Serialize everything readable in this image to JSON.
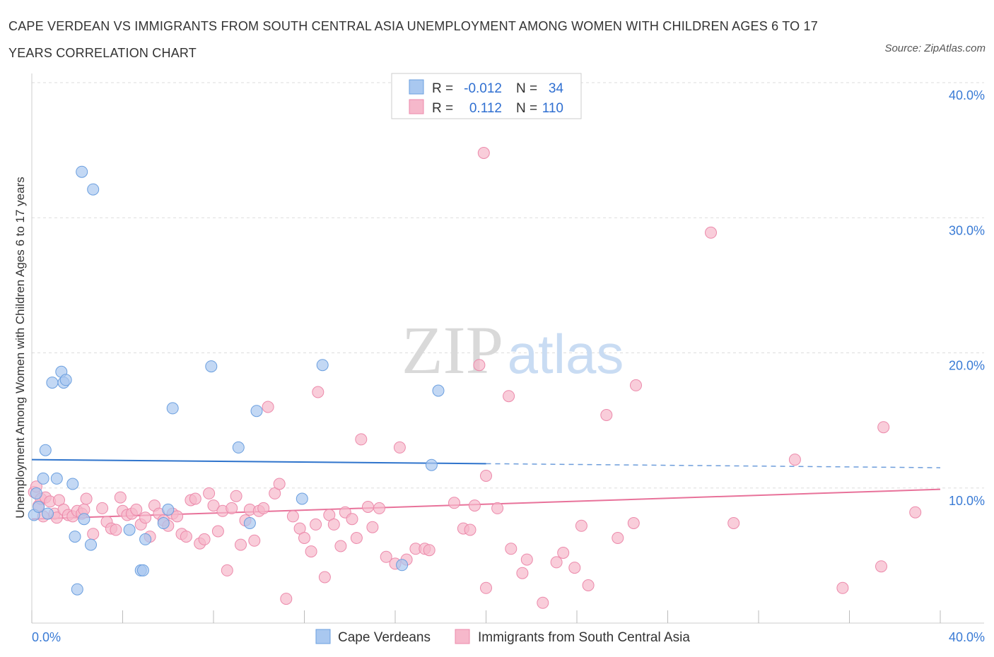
{
  "header": {
    "title": "CAPE VERDEAN VS IMMIGRANTS FROM SOUTH CENTRAL ASIA UNEMPLOYMENT AMONG WOMEN WITH CHILDREN AGES 6 TO 17 YEARS CORRELATION CHART",
    "source": "Source: ZipAtlas.com"
  },
  "watermark": {
    "zip": "ZIP",
    "atlas": "atlas"
  },
  "legend_box": {
    "rows": [
      {
        "r_label": "R =",
        "r_value": "-0.012",
        "n_label": "N =",
        "n_value": "34",
        "color": "#a9c8f0"
      },
      {
        "r_label": "R =",
        "r_value": "0.112",
        "n_label": "N =",
        "n_value": "110",
        "color": "#f6b8cb"
      }
    ]
  },
  "bottom_legend": {
    "items": [
      {
        "label": "Cape Verdeans",
        "color": "#a9c8f0"
      },
      {
        "label": "Immigrants from South Central Asia",
        "color": "#f6b8cb"
      }
    ]
  },
  "colors": {
    "blue_fill": "#a9c8f0",
    "blue_stroke": "#6b9fdf",
    "blue_line": "#2f74cc",
    "pink_fill": "#f6b8cb",
    "pink_stroke": "#ec8aab",
    "pink_line": "#e8729a",
    "grid": "#dddddd",
    "tick_text": "#3a7bd5"
  },
  "chart_data": {
    "type": "scatter",
    "ylabel": "Unemployment Among Women with Children Ages 6 to 17 years",
    "xlabel": "",
    "xlim": [
      0,
      40
    ],
    "ylim": [
      0,
      40
    ],
    "x_tick_labels": [
      "0.0%",
      "40.0%"
    ],
    "y_tick_values": [
      10,
      20,
      30,
      40
    ],
    "y_tick_labels": [
      "10.0%",
      "20.0%",
      "30.0%",
      "40.0%"
    ],
    "grid": true,
    "legend_placement": "top-center",
    "series": [
      {
        "name": "Cape Verdeans",
        "R": -0.012,
        "N": 34,
        "trend": {
          "x0": 0,
          "y0": 12.1,
          "x1": 20,
          "y1": 11.8,
          "x_end": 40,
          "y_end": 11.5
        },
        "points": [
          [
            0.1,
            8.0
          ],
          [
            0.2,
            9.6
          ],
          [
            0.3,
            8.6
          ],
          [
            0.5,
            10.7
          ],
          [
            0.6,
            12.8
          ],
          [
            0.7,
            8.1
          ],
          [
            0.9,
            17.8
          ],
          [
            1.1,
            10.7
          ],
          [
            1.3,
            18.6
          ],
          [
            1.4,
            17.8
          ],
          [
            1.5,
            18.0
          ],
          [
            1.8,
            10.3
          ],
          [
            1.9,
            6.4
          ],
          [
            2.0,
            2.5
          ],
          [
            2.2,
            33.4
          ],
          [
            2.3,
            7.7
          ],
          [
            2.6,
            5.8
          ],
          [
            2.7,
            32.1
          ],
          [
            4.3,
            6.9
          ],
          [
            4.8,
            3.9
          ],
          [
            4.9,
            3.9
          ],
          [
            5.0,
            6.2
          ],
          [
            5.8,
            7.4
          ],
          [
            6.0,
            8.4
          ],
          [
            6.2,
            15.9
          ],
          [
            7.9,
            19.0
          ],
          [
            9.1,
            13.0
          ],
          [
            9.6,
            7.4
          ],
          [
            9.9,
            15.7
          ],
          [
            11.9,
            9.2
          ],
          [
            12.8,
            19.1
          ],
          [
            16.3,
            4.3
          ],
          [
            17.6,
            11.7
          ],
          [
            17.9,
            17.2
          ]
        ]
      },
      {
        "name": "Immigrants from South Central Asia",
        "R": 0.112,
        "N": 110,
        "trend": {
          "x0": 0,
          "y0": 7.7,
          "x1": 40,
          "y1": 9.9
        },
        "points": [
          [
            0.1,
            9.7
          ],
          [
            0.2,
            10.1
          ],
          [
            0.3,
            8.7
          ],
          [
            0.4,
            9.2
          ],
          [
            0.5,
            7.9
          ],
          [
            0.6,
            9.3
          ],
          [
            0.8,
            9.0
          ],
          [
            1.0,
            8.1
          ],
          [
            1.1,
            7.8
          ],
          [
            1.2,
            9.1
          ],
          [
            1.4,
            8.4
          ],
          [
            1.6,
            8.0
          ],
          [
            1.8,
            7.9
          ],
          [
            2.0,
            8.3
          ],
          [
            2.2,
            8.1
          ],
          [
            2.3,
            8.4
          ],
          [
            2.4,
            9.2
          ],
          [
            2.7,
            6.6
          ],
          [
            3.1,
            8.5
          ],
          [
            3.3,
            7.5
          ],
          [
            3.5,
            7.0
          ],
          [
            3.7,
            6.9
          ],
          [
            3.9,
            9.3
          ],
          [
            4.0,
            8.3
          ],
          [
            4.2,
            8.0
          ],
          [
            4.4,
            8.1
          ],
          [
            4.6,
            8.4
          ],
          [
            4.8,
            7.3
          ],
          [
            5.0,
            7.8
          ],
          [
            5.2,
            6.4
          ],
          [
            5.4,
            8.7
          ],
          [
            5.6,
            8.1
          ],
          [
            5.8,
            7.6
          ],
          [
            6.0,
            7.2
          ],
          [
            6.2,
            8.1
          ],
          [
            6.4,
            7.9
          ],
          [
            6.6,
            6.6
          ],
          [
            6.8,
            6.4
          ],
          [
            7.0,
            9.1
          ],
          [
            7.2,
            9.2
          ],
          [
            7.4,
            5.9
          ],
          [
            7.6,
            6.2
          ],
          [
            7.8,
            9.6
          ],
          [
            8.0,
            8.7
          ],
          [
            8.2,
            6.8
          ],
          [
            8.4,
            8.3
          ],
          [
            8.6,
            3.9
          ],
          [
            8.8,
            8.5
          ],
          [
            9.0,
            9.4
          ],
          [
            9.2,
            5.8
          ],
          [
            9.4,
            7.6
          ],
          [
            9.6,
            8.4
          ],
          [
            9.8,
            6.1
          ],
          [
            10.0,
            8.3
          ],
          [
            10.2,
            8.5
          ],
          [
            10.4,
            16.0
          ],
          [
            10.7,
            9.6
          ],
          [
            10.9,
            10.3
          ],
          [
            11.2,
            1.8
          ],
          [
            11.5,
            7.9
          ],
          [
            11.8,
            7.0
          ],
          [
            12.0,
            6.3
          ],
          [
            12.3,
            5.3
          ],
          [
            12.5,
            7.3
          ],
          [
            12.6,
            17.1
          ],
          [
            12.9,
            3.4
          ],
          [
            13.1,
            8.0
          ],
          [
            13.3,
            7.3
          ],
          [
            13.6,
            5.7
          ],
          [
            13.8,
            8.2
          ],
          [
            14.1,
            7.7
          ],
          [
            14.3,
            6.3
          ],
          [
            14.5,
            13.6
          ],
          [
            14.8,
            8.6
          ],
          [
            15.0,
            7.1
          ],
          [
            15.3,
            8.5
          ],
          [
            15.6,
            4.9
          ],
          [
            16.0,
            4.4
          ],
          [
            16.2,
            13.0
          ],
          [
            16.5,
            4.7
          ],
          [
            16.9,
            5.5
          ],
          [
            17.3,
            5.5
          ],
          [
            17.5,
            5.4
          ],
          [
            18.6,
            8.9
          ],
          [
            19.0,
            7.0
          ],
          [
            19.3,
            6.9
          ],
          [
            19.5,
            8.7
          ],
          [
            19.7,
            19.1
          ],
          [
            19.9,
            34.8
          ],
          [
            20.0,
            2.6
          ],
          [
            20.0,
            10.9
          ],
          [
            20.5,
            8.5
          ],
          [
            21.0,
            16.8
          ],
          [
            21.1,
            5.5
          ],
          [
            21.6,
            3.7
          ],
          [
            21.8,
            4.7
          ],
          [
            22.5,
            1.5
          ],
          [
            23.1,
            4.5
          ],
          [
            23.4,
            5.2
          ],
          [
            23.9,
            4.1
          ],
          [
            24.2,
            7.2
          ],
          [
            24.5,
            2.8
          ],
          [
            25.3,
            15.4
          ],
          [
            25.8,
            6.3
          ],
          [
            26.5,
            7.4
          ],
          [
            26.6,
            17.6
          ],
          [
            29.9,
            28.9
          ],
          [
            30.9,
            7.4
          ],
          [
            33.6,
            12.1
          ],
          [
            35.7,
            2.6
          ],
          [
            37.4,
            4.2
          ],
          [
            37.5,
            14.5
          ],
          [
            38.9,
            8.2
          ]
        ]
      }
    ]
  }
}
